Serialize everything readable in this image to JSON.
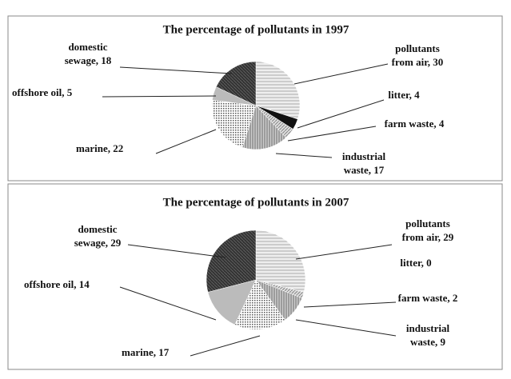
{
  "chart_data": [
    {
      "type": "pie",
      "title": "The percentage of pollutants in 1997",
      "labels": [
        "pollutants from air, 30",
        "litter, 4",
        "farm waste, 4",
        "industrial waste, 17",
        "marine, 22",
        "offshore oil, 5",
        "domestic sewage, 18"
      ],
      "values": [
        30,
        4,
        4,
        17,
        22,
        5,
        18
      ]
    },
    {
      "type": "pie",
      "title": "The percentage of pollutants in 2007",
      "labels": [
        "pollutants from air, 29",
        "litter, 0",
        "farm waste, 2",
        "industrial waste, 9",
        "marine, 17",
        "offshore oil, 14",
        "domestic sewage, 29"
      ],
      "values": [
        29,
        0,
        2,
        9,
        17,
        14,
        29
      ]
    }
  ]
}
